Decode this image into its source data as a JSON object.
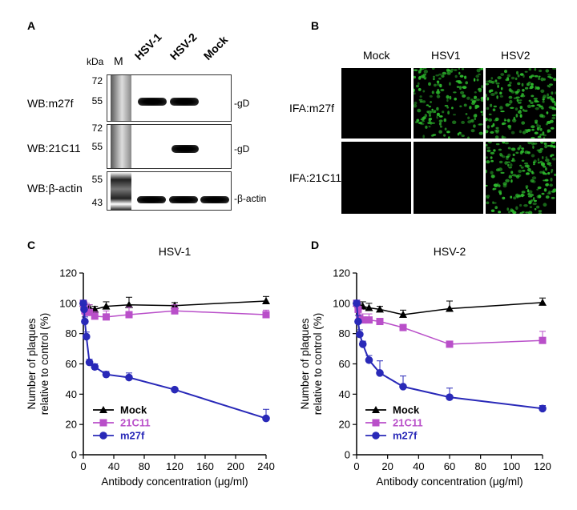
{
  "panelA": {
    "label": "A",
    "kda": "kDa",
    "marker": "M",
    "lanes": [
      "HSV-1",
      "HSV-2",
      "Mock"
    ],
    "blots": [
      {
        "name": "WB:m27f",
        "ticks": [
          "72",
          "55"
        ],
        "band_label": "-gD",
        "bands": [
          true,
          true,
          false
        ]
      },
      {
        "name": "WB:21C11",
        "ticks": [
          "72",
          "55"
        ],
        "band_label": "-gD",
        "bands": [
          false,
          true,
          false
        ]
      },
      {
        "name": "WB:β-actin",
        "ticks": [
          "55",
          "43"
        ],
        "band_label": "-β-actin",
        "bands": [
          true,
          true,
          true
        ]
      }
    ]
  },
  "panelB": {
    "label": "B",
    "columns": [
      "Mock",
      "HSV1",
      "HSV2"
    ],
    "rows": [
      {
        "name": "IFA:m27f",
        "signal": [
          0,
          0.8,
          0.9
        ]
      },
      {
        "name": "IFA:21C11",
        "signal": [
          0,
          0,
          0.9
        ]
      }
    ],
    "fluorescence_color": "#2db82d"
  },
  "chart_data": [
    {
      "panel": "C",
      "type": "line",
      "title": "HSV-1",
      "xlabel": "Antibody concentration (μg/ml)",
      "ylabel": "Number of plaques relative to control (%)",
      "xlim": [
        0,
        240
      ],
      "ylim": [
        0,
        120
      ],
      "xticks": [
        0,
        40,
        80,
        120,
        160,
        200,
        240
      ],
      "yticks": [
        0,
        20,
        40,
        60,
        80,
        100,
        120
      ],
      "legend_position": "bottom-left",
      "series": [
        {
          "name": "Mock",
          "color": "#000000",
          "marker": "triangle",
          "x": [
            0,
            1,
            2,
            4,
            8,
            15,
            30,
            60,
            120,
            240
          ],
          "y": [
            100,
            99,
            98,
            97,
            97,
            96,
            98,
            99,
            98.5,
            101.5
          ],
          "err": [
            1.5,
            2,
            2,
            2,
            2,
            2,
            3,
            5,
            2,
            3
          ]
        },
        {
          "name": "21C11",
          "color": "#b94fc9",
          "marker": "square",
          "x": [
            0,
            1,
            2,
            4,
            8,
            15,
            30,
            60,
            120,
            240
          ],
          "y": [
            100,
            97,
            95,
            94,
            94,
            91.5,
            91,
            92.5,
            95,
            92.5
          ],
          "err": [
            1.5,
            4,
            4,
            6,
            5,
            3,
            4,
            5,
            4,
            3
          ]
        },
        {
          "name": "m27f",
          "color": "#2929b8",
          "marker": "circle",
          "x": [
            0,
            1,
            2,
            4,
            8,
            15,
            30,
            60,
            120,
            240
          ],
          "y": [
            100,
            96,
            88,
            78,
            61,
            58,
            53,
            51,
            43,
            24
          ],
          "err": [
            2,
            3,
            3,
            3,
            2,
            2,
            2,
            3,
            1,
            6
          ]
        }
      ]
    },
    {
      "panel": "D",
      "type": "line",
      "title": "HSV-2",
      "xlabel": "Antibody concentration (μg/ml)",
      "ylabel": "Number of plaques relative to control (%)",
      "xlim": [
        0,
        120
      ],
      "ylim": [
        0,
        120
      ],
      "xticks": [
        0,
        20,
        40,
        60,
        80,
        100,
        120
      ],
      "yticks": [
        0,
        20,
        40,
        60,
        80,
        100,
        120
      ],
      "legend_position": "bottom-left",
      "series": [
        {
          "name": "Mock",
          "color": "#000000",
          "marker": "triangle",
          "x": [
            0,
            1,
            2,
            4,
            8,
            15,
            30,
            60,
            120
          ],
          "y": [
            100,
            99,
            98,
            98,
            97,
            96,
            92.5,
            96.5,
            100.5
          ],
          "err": [
            1.5,
            2,
            2,
            3,
            3,
            2,
            3,
            5,
            3
          ]
        },
        {
          "name": "21C11",
          "color": "#b94fc9",
          "marker": "square",
          "x": [
            0,
            1,
            2,
            4,
            8,
            15,
            30,
            60,
            120
          ],
          "y": [
            100,
            96,
            90,
            89,
            89,
            88,
            84,
            73,
            75.5
          ],
          "err": [
            1.5,
            4,
            6,
            4,
            4,
            2,
            2,
            2,
            6
          ]
        },
        {
          "name": "m27f",
          "color": "#2929b8",
          "marker": "circle",
          "x": [
            0,
            1,
            2,
            4,
            8,
            15,
            30,
            60,
            120
          ],
          "y": [
            100,
            88,
            79.5,
            73,
            62.5,
            54,
            45,
            38,
            30.5
          ],
          "err": [
            2,
            4,
            3,
            2,
            3,
            8,
            7,
            6,
            2
          ]
        }
      ]
    }
  ]
}
